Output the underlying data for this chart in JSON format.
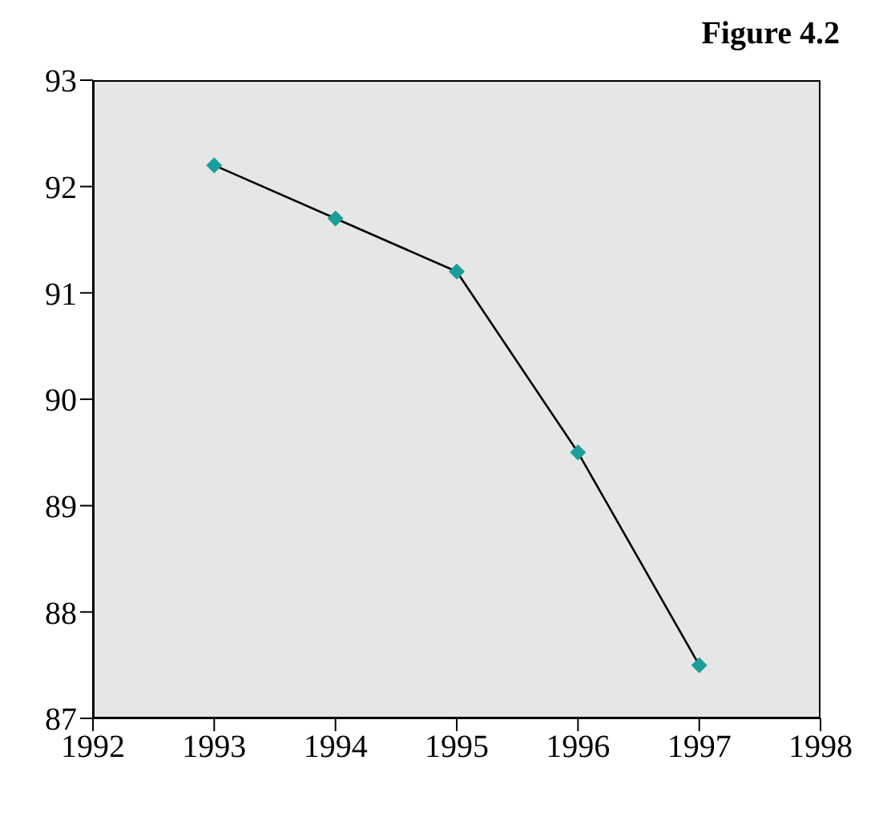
{
  "chart_data": {
    "type": "line",
    "title": "Figure 4.2",
    "x": [
      1993,
      1994,
      1995,
      1996,
      1997
    ],
    "series": [
      {
        "color": "#1a9e9a",
        "values": [
          92.2,
          91.7,
          91.2,
          89.5,
          87.5
        ]
      }
    ],
    "xlim": [
      1992,
      1998
    ],
    "xticks": [
      1992,
      1993,
      1994,
      1995,
      1996,
      1997,
      1998
    ],
    "ylim": [
      87,
      93
    ],
    "yticks": [
      87,
      88,
      89,
      90,
      91,
      92,
      93
    ],
    "marker": "diamond",
    "line_style": "solid"
  }
}
